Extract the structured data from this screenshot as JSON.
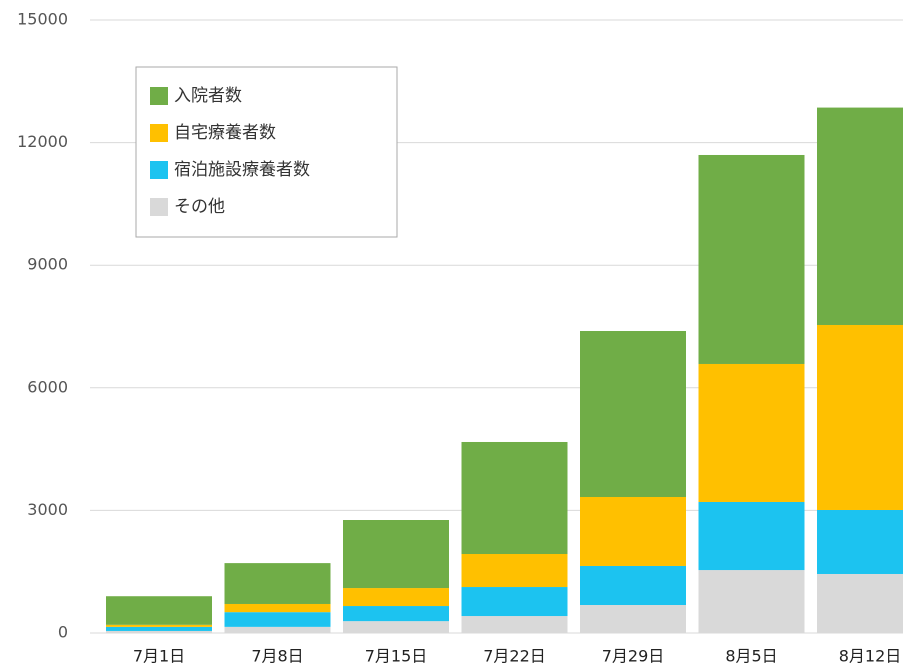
{
  "chart_data": {
    "type": "stacked_bar",
    "categories": [
      "7月1日",
      "7月8日",
      "7月15日",
      "7月22日",
      "7月29日",
      "8月5日",
      "8月12日"
    ],
    "series": [
      {
        "name": "その他",
        "color": "#d9d9d9",
        "values": [
          50,
          150,
          290,
          415,
          685,
          1540,
          1444
        ]
      },
      {
        "name": "宿泊施設療養者数",
        "color": "#1cc3f0",
        "values": [
          100,
          360,
          370,
          710,
          955,
          1666,
          1566
        ]
      },
      {
        "name": "自宅療養者数",
        "color": "#ffc000",
        "values": [
          50,
          200,
          440,
          808,
          1688,
          3377,
          4527
        ]
      },
      {
        "name": "入院者数",
        "color": "#70ad47",
        "values": [
          700,
          1000,
          1665,
          2741,
          4062,
          5114,
          5320
        ]
      }
    ],
    "ylim": [
      0,
      15000
    ],
    "yticks": [
      0,
      3000,
      6000,
      9000,
      12000,
      15000
    ],
    "grid": true
  }
}
